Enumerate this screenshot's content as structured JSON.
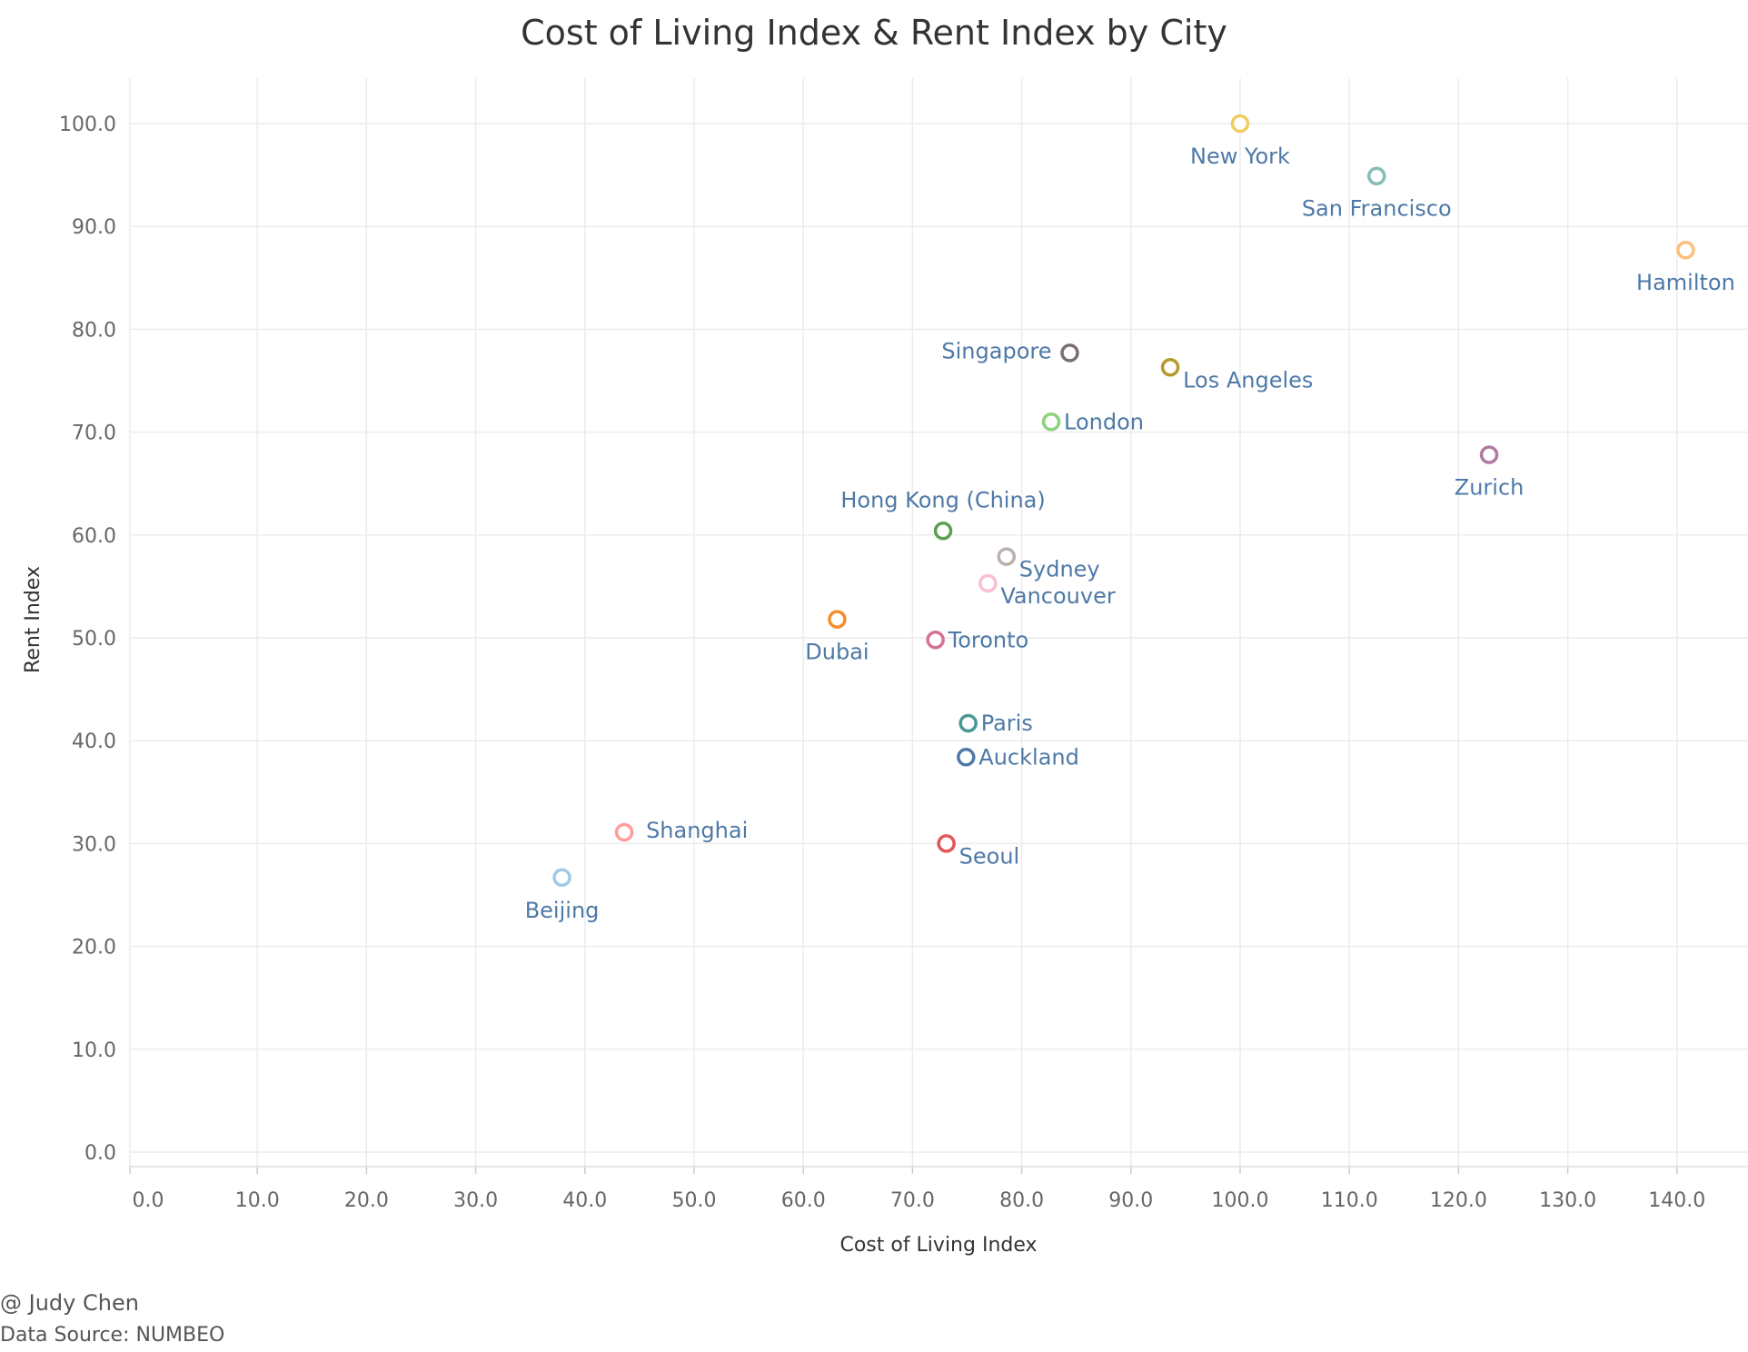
{
  "chart_data": {
    "type": "scatter",
    "title": "Cost of Living Index & Rent Index by City",
    "xlabel": "Cost of Living Index",
    "ylabel": "Rent Index",
    "xlim": [
      0,
      145
    ],
    "ylim": [
      0,
      106
    ],
    "x_ticks": [
      0,
      10,
      20,
      30,
      40,
      50,
      60,
      70,
      80,
      90,
      100,
      110,
      120,
      130,
      140
    ],
    "y_ticks": [
      0,
      10,
      20,
      30,
      40,
      50,
      60,
      70,
      80,
      90,
      100
    ],
    "x_tick_labels": [
      "0.0",
      "10.0",
      "20.0",
      "30.0",
      "40.0",
      "50.0",
      "60.0",
      "70.0",
      "80.0",
      "90.0",
      "100.0",
      "110.0",
      "120.0",
      "130.0",
      "140.0"
    ],
    "y_tick_labels": [
      "0.0",
      "10.0",
      "20.0",
      "30.0",
      "40.0",
      "50.0",
      "60.0",
      "70.0",
      "80.0",
      "90.0",
      "100.0"
    ],
    "grid": true,
    "label_color": "#4e79a7",
    "points": [
      {
        "label": "New York",
        "x": 100.0,
        "y": 100.0,
        "color": "#f1ce63",
        "label_pos": "below"
      },
      {
        "label": "San Francisco",
        "x": 112.5,
        "y": 94.9,
        "color": "#86bcb6",
        "label_pos": "below"
      },
      {
        "label": "Hamilton",
        "x": 140.8,
        "y": 87.7,
        "color": "#ffbe7d",
        "label_pos": "below"
      },
      {
        "label": "Singapore",
        "x": 84.4,
        "y": 77.7,
        "color": "#79706e",
        "label_pos": "left"
      },
      {
        "label": "Los Angeles",
        "x": 93.6,
        "y": 76.3,
        "color": "#b6992d",
        "label_pos": "right-low"
      },
      {
        "label": "London",
        "x": 82.7,
        "y": 71.0,
        "color": "#8cd17d",
        "label_pos": "right"
      },
      {
        "label": "Zurich",
        "x": 122.8,
        "y": 67.8,
        "color": "#b07aa1",
        "label_pos": "below"
      },
      {
        "label": "Hong Kong (China)",
        "x": 72.8,
        "y": 60.4,
        "color": "#59a14f",
        "label_pos": "above"
      },
      {
        "label": "Sydney",
        "x": 78.6,
        "y": 57.9,
        "color": "#bab0ac",
        "label_pos": "right-low"
      },
      {
        "label": "Vancouver",
        "x": 76.9,
        "y": 55.3,
        "color": "#fabfd2",
        "label_pos": "right-low"
      },
      {
        "label": "Dubai",
        "x": 63.1,
        "y": 51.8,
        "color": "#f28e2b",
        "label_pos": "below"
      },
      {
        "label": "Toronto",
        "x": 72.1,
        "y": 49.8,
        "color": "#d37295",
        "label_pos": "right"
      },
      {
        "label": "Paris",
        "x": 75.1,
        "y": 41.7,
        "color": "#499894",
        "label_pos": "right"
      },
      {
        "label": "Auckland",
        "x": 74.9,
        "y": 38.4,
        "color": "#4e79a7",
        "label_pos": "right"
      },
      {
        "label": "Shanghai",
        "x": 43.6,
        "y": 31.1,
        "color": "#ff9d9a",
        "label_pos": "right-high"
      },
      {
        "label": "Seoul",
        "x": 73.1,
        "y": 30.0,
        "color": "#e15759",
        "label_pos": "right-low"
      },
      {
        "label": "Beijing",
        "x": 37.9,
        "y": 26.7,
        "color": "#a0cbe8",
        "label_pos": "below"
      }
    ]
  },
  "credits": {
    "author": "@ Judy Chen",
    "source": "Data Source: NUMBEO"
  }
}
